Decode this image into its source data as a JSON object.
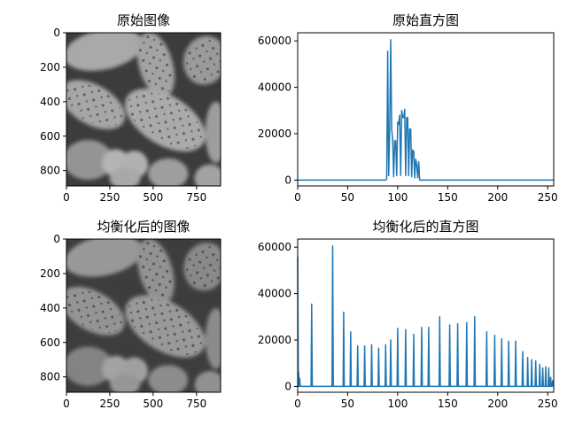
{
  "colors": {
    "line": "#1f77b4",
    "axis": "#000000",
    "background": "#ffffff"
  },
  "panels": [
    {
      "title": "原始图像",
      "kind": "image",
      "shows": "grayscale-pollen-photo"
    },
    {
      "title": "原始直方图",
      "kind": "histogram"
    },
    {
      "title": "均衡化后的图像",
      "kind": "image",
      "shows": "grayscale-pollen-photo-equalized"
    },
    {
      "title": "均衡化后的直方图",
      "kind": "histogram"
    }
  ],
  "chart_data": [
    {
      "type": "image",
      "title": "原始图像",
      "xlim": [
        0,
        889
      ],
      "ylim": [
        889,
        0
      ],
      "xticks": [
        0,
        250,
        500,
        750
      ],
      "yticks": [
        0,
        200,
        400,
        600,
        800
      ],
      "contrast": "low"
    },
    {
      "type": "line",
      "title": "原始直方图",
      "xlim": [
        0,
        256
      ],
      "ylim": [
        -2500,
        63500
      ],
      "xticks": [
        0,
        50,
        100,
        150,
        200,
        250
      ],
      "yticks": [
        0,
        20000,
        40000,
        60000
      ],
      "series": [
        {
          "x": [
            0,
            88,
            89,
            90,
            91,
            92,
            93,
            94,
            95,
            96,
            97,
            98,
            99,
            100,
            101,
            102,
            103,
            104,
            105,
            106,
            107,
            108,
            109,
            110,
            111,
            112,
            113,
            114,
            115,
            116,
            117,
            118,
            119,
            120,
            121,
            122,
            123,
            124,
            125,
            126,
            127,
            128,
            129,
            130,
            131,
            132,
            133,
            134,
            135,
            256
          ],
          "y": [
            0,
            0,
            500,
            55500,
            2000,
            22000,
            60500,
            22000,
            18000,
            1500,
            17000,
            17000,
            2000,
            25000,
            24000,
            28000,
            2000,
            30000,
            27000,
            27000,
            30500,
            2000,
            27000,
            27000,
            2000,
            22000,
            22000,
            1500,
            13000,
            12500,
            1000,
            9000,
            7000,
            1000,
            8000,
            0,
            0,
            0,
            0,
            0,
            0,
            0,
            0,
            0,
            0,
            0,
            0,
            0,
            0,
            0
          ]
        }
      ]
    },
    {
      "type": "image",
      "title": "均衡化后的图像",
      "xlim": [
        0,
        889
      ],
      "ylim": [
        889,
        0
      ],
      "xticks": [
        0,
        250,
        500,
        750
      ],
      "yticks": [
        0,
        200,
        400,
        600,
        800
      ],
      "contrast": "high"
    },
    {
      "type": "line",
      "title": "均衡化后的直方图",
      "xlim": [
        0,
        256
      ],
      "ylim": [
        -2500,
        63500
      ],
      "xticks": [
        0,
        50,
        100,
        150,
        200,
        250
      ],
      "yticks": [
        0,
        20000,
        40000,
        60000
      ],
      "series": [
        {
          "spikes": [
            [
              0,
              56000
            ],
            [
              1,
              6000
            ],
            [
              2,
              3500
            ],
            [
              14,
              35500
            ],
            [
              35,
              60500
            ],
            [
              46,
              32000
            ],
            [
              53,
              23500
            ],
            [
              60,
              17500
            ],
            [
              67,
              17500
            ],
            [
              74,
              18000
            ],
            [
              81,
              16500
            ],
            [
              88,
              18000
            ],
            [
              93,
              20000
            ],
            [
              100,
              25000
            ],
            [
              108,
              24500
            ],
            [
              116,
              22500
            ],
            [
              124,
              25500
            ],
            [
              131,
              25500
            ],
            [
              142,
              30000
            ],
            [
              152,
              26500
            ],
            [
              160,
              27000
            ],
            [
              169,
              27500
            ],
            [
              177,
              30000
            ],
            [
              189,
              23500
            ],
            [
              197,
              22000
            ],
            [
              204,
              20500
            ],
            [
              211,
              19500
            ],
            [
              218,
              19500
            ],
            [
              225,
              15000
            ],
            [
              230,
              12500
            ],
            [
              234,
              11500
            ],
            [
              238,
              11000
            ],
            [
              242,
              9500
            ],
            [
              245,
              8000
            ],
            [
              248,
              8500
            ],
            [
              251,
              8000
            ],
            [
              253,
              4000
            ],
            [
              255,
              2500
            ]
          ]
        }
      ]
    }
  ]
}
